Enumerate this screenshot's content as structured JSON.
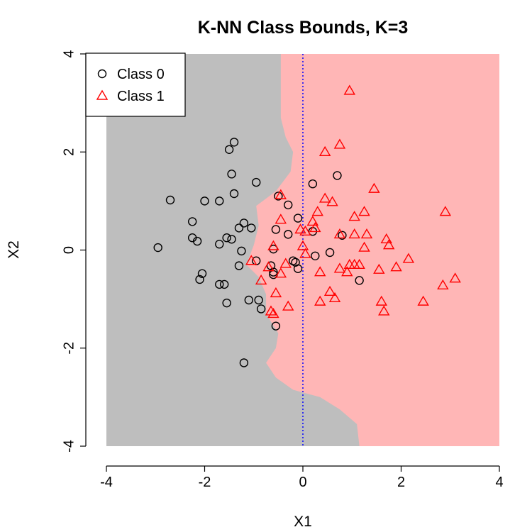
{
  "chart_data": {
    "type": "scatter",
    "title": "K-NN Class Bounds, K=3",
    "xlabel": "X1",
    "ylabel": "X2",
    "xlim": [
      -4,
      4
    ],
    "ylim": [
      -4,
      4
    ],
    "xticks": [
      -4,
      -2,
      0,
      2,
      4
    ],
    "yticks": [
      -4,
      -2,
      0,
      2,
      4
    ],
    "grid": false,
    "legend_position": "top-left",
    "reference_line": {
      "x": 0,
      "style": "dotted",
      "color": "#0000ff"
    },
    "region_colors": {
      "class_0": "#bebebe",
      "class_1": "#ffb6b6"
    },
    "boundary": [
      [
        -0.45,
        4.0
      ],
      [
        -0.45,
        2.7
      ],
      [
        -0.35,
        2.3
      ],
      [
        -0.2,
        2.0
      ],
      [
        -0.25,
        1.6
      ],
      [
        -0.55,
        1.2
      ],
      [
        -0.95,
        0.9
      ],
      [
        -0.9,
        0.5
      ],
      [
        -1.0,
        0.1
      ],
      [
        -1.15,
        -0.3
      ],
      [
        -0.9,
        -0.55
      ],
      [
        -0.75,
        -0.9
      ],
      [
        -0.75,
        -1.3
      ],
      [
        -0.5,
        -1.7
      ],
      [
        -0.55,
        -2.0
      ],
      [
        -0.75,
        -2.3
      ],
      [
        -0.55,
        -2.6
      ],
      [
        -0.2,
        -2.85
      ],
      [
        0.35,
        -3.0
      ],
      [
        0.75,
        -3.25
      ],
      [
        1.1,
        -3.55
      ],
      [
        1.15,
        -4.0
      ]
    ],
    "series": [
      {
        "name": "Class 0",
        "marker": "circle",
        "color": "#000000",
        "points": [
          [
            -1.4,
            2.2
          ],
          [
            -1.5,
            2.05
          ],
          [
            -1.45,
            1.55
          ],
          [
            -0.95,
            1.38
          ],
          [
            -1.4,
            1.15
          ],
          [
            -2.7,
            1.02
          ],
          [
            -2.0,
            1.0
          ],
          [
            -1.7,
            1.0
          ],
          [
            -2.25,
            0.58
          ],
          [
            -1.2,
            0.55
          ],
          [
            -1.3,
            0.45
          ],
          [
            -1.05,
            0.45
          ],
          [
            -1.55,
            0.25
          ],
          [
            -1.45,
            0.22
          ],
          [
            -2.25,
            0.25
          ],
          [
            -2.15,
            0.18
          ],
          [
            -1.7,
            0.12
          ],
          [
            -2.95,
            0.05
          ],
          [
            -1.25,
            -0.02
          ],
          [
            -0.95,
            -0.22
          ],
          [
            -1.3,
            -0.32
          ],
          [
            -2.05,
            -0.48
          ],
          [
            -2.1,
            -0.6
          ],
          [
            -1.7,
            -0.7
          ],
          [
            -1.6,
            -0.7
          ],
          [
            -1.1,
            -1.02
          ],
          [
            -0.9,
            -1.02
          ],
          [
            -1.55,
            -1.08
          ],
          [
            -0.85,
            -1.2
          ],
          [
            -0.55,
            -1.55
          ],
          [
            -1.2,
            -2.3
          ],
          [
            -0.5,
            1.1
          ],
          [
            -0.3,
            0.92
          ],
          [
            -0.1,
            0.65
          ],
          [
            -0.55,
            0.42
          ],
          [
            -0.3,
            0.32
          ],
          [
            -0.6,
            0.02
          ],
          [
            -0.2,
            -0.22
          ],
          [
            -0.15,
            -0.25
          ],
          [
            -0.1,
            -0.38
          ],
          [
            -0.65,
            -0.32
          ],
          [
            -0.6,
            -0.45
          ],
          [
            -0.6,
            -0.5
          ],
          [
            0.2,
            1.35
          ],
          [
            0.7,
            1.52
          ],
          [
            0.2,
            0.38
          ],
          [
            0.8,
            0.3
          ],
          [
            0.55,
            -0.05
          ],
          [
            0.25,
            -0.12
          ],
          [
            1.15,
            -0.62
          ]
        ]
      },
      {
        "name": "Class 1",
        "marker": "triangle",
        "color": "#ff0000",
        "points": [
          [
            0.95,
            3.25
          ],
          [
            0.75,
            2.15
          ],
          [
            0.45,
            2.0
          ],
          [
            1.45,
            1.25
          ],
          [
            0.45,
            1.05
          ],
          [
            0.6,
            0.98
          ],
          [
            0.3,
            0.78
          ],
          [
            1.25,
            0.78
          ],
          [
            1.05,
            0.68
          ],
          [
            0.2,
            0.58
          ],
          [
            0.25,
            0.45
          ],
          [
            0.05,
            0.38
          ],
          [
            -0.05,
            0.42
          ],
          [
            0.75,
            0.32
          ],
          [
            1.05,
            0.32
          ],
          [
            1.3,
            0.32
          ],
          [
            1.7,
            0.22
          ],
          [
            1.75,
            0.1
          ],
          [
            1.25,
            0.05
          ],
          [
            0.0,
            0.08
          ],
          [
            0.05,
            -0.08
          ],
          [
            1.05,
            -0.3
          ],
          [
            1.15,
            -0.3
          ],
          [
            0.95,
            -0.3
          ],
          [
            0.75,
            -0.38
          ],
          [
            1.9,
            -0.35
          ],
          [
            2.15,
            -0.18
          ],
          [
            1.55,
            -0.4
          ],
          [
            0.9,
            -0.45
          ],
          [
            0.35,
            -0.45
          ],
          [
            -0.45,
            0.62
          ],
          [
            -0.45,
            1.12
          ],
          [
            -0.6,
            0.08
          ],
          [
            -0.35,
            -0.28
          ],
          [
            -1.05,
            -0.22
          ],
          [
            -0.7,
            -0.35
          ],
          [
            -0.45,
            -0.48
          ],
          [
            -0.85,
            -0.62
          ],
          [
            -0.55,
            -0.88
          ],
          [
            -0.3,
            -1.15
          ],
          [
            -0.65,
            -1.25
          ],
          [
            -0.6,
            -1.3
          ],
          [
            0.55,
            -0.85
          ],
          [
            0.65,
            -0.98
          ],
          [
            0.35,
            -1.05
          ],
          [
            1.6,
            -1.05
          ],
          [
            1.65,
            -1.25
          ],
          [
            2.45,
            -1.05
          ],
          [
            2.85,
            -0.72
          ],
          [
            3.1,
            -0.58
          ],
          [
            2.9,
            0.78
          ]
        ]
      }
    ]
  }
}
